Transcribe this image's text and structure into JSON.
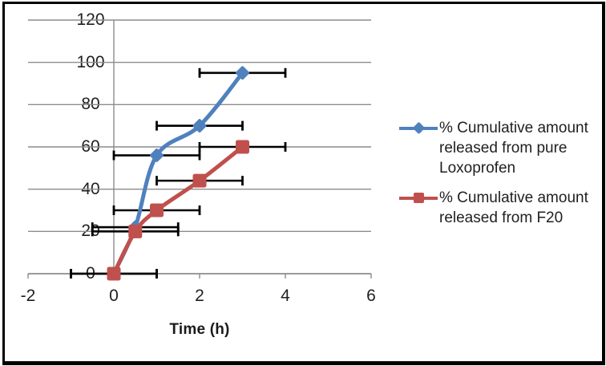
{
  "chart_data": {
    "type": "line",
    "title": "",
    "xlabel": "Time (h)",
    "ylabel": "",
    "xlim": [
      -2,
      6
    ],
    "ylim": [
      0,
      120
    ],
    "x_ticks": [
      -2,
      0,
      2,
      4,
      6
    ],
    "y_ticks": [
      0,
      20,
      40,
      60,
      80,
      100,
      120
    ],
    "grid": true,
    "legend_position": "right",
    "error_bar_style": "horizontal, plus-minus 1 h, black with caps",
    "series": [
      {
        "name": "% Cumulative amount released from pure Loxoprofen",
        "legend_lines": [
          "% Cumulative amount",
          "released from pure",
          "Loxoprofen"
        ],
        "color": "#4F81BD",
        "marker": "diamond",
        "smooth": true,
        "x": [
          0,
          0.5,
          1,
          2,
          3
        ],
        "y": [
          0,
          22,
          56,
          70,
          95
        ],
        "x_error": 1
      },
      {
        "name": "% Cumulative amount released from F20",
        "legend_lines": [
          "% Cumulative amount",
          "released from F20"
        ],
        "color": "#C0504D",
        "marker": "square",
        "smooth": true,
        "x": [
          0,
          0.5,
          1,
          2,
          3
        ],
        "y": [
          0,
          20,
          30,
          44,
          60
        ],
        "x_error": 1
      }
    ],
    "colors": {
      "gridline": "#8C8C8C",
      "axis": "#8C8C8C",
      "error_bar": "#000000",
      "text": "#1F1F1F"
    }
  }
}
